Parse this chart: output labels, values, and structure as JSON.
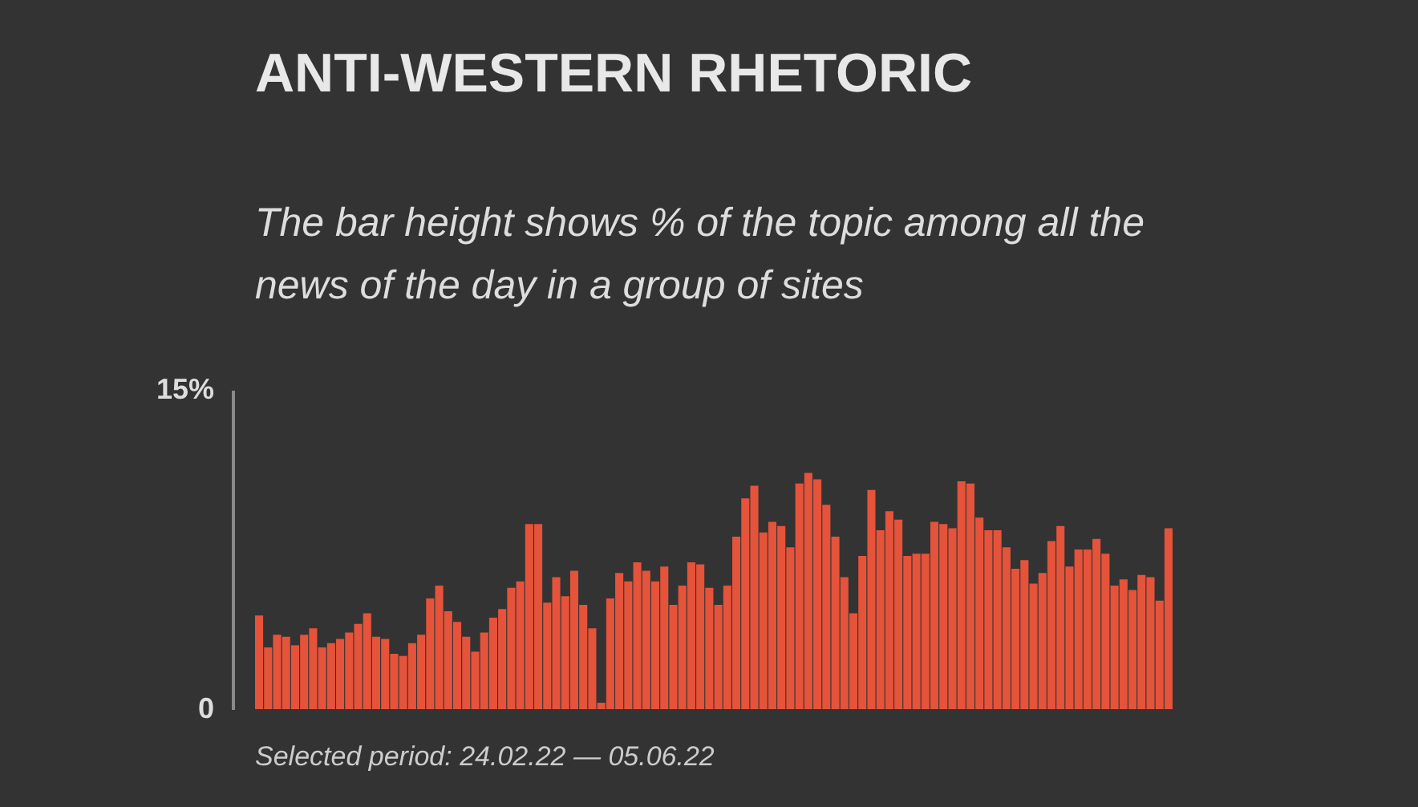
{
  "chart_data": {
    "type": "bar",
    "title": "ANTI-WESTERN RHETORIC",
    "subtitle": "The bar height shows % of the topic among all the news of the day in a group of sites",
    "annotations": [
      "Selected period: 24.02.22 — 05.06.22"
    ],
    "categories": [
      null,
      null,
      null,
      null,
      null,
      null,
      null,
      null,
      null,
      null,
      null,
      null,
      null,
      null,
      null,
      null,
      null,
      null,
      null,
      null,
      null,
      null,
      null,
      null,
      null,
      null,
      null,
      null,
      null,
      null,
      null,
      null,
      null,
      null,
      null,
      null,
      null,
      null,
      null,
      null,
      null,
      null,
      null,
      null,
      null,
      null,
      null,
      null,
      null,
      null,
      null,
      null,
      null,
      null,
      null,
      null,
      null,
      null,
      null,
      null,
      null,
      null,
      null,
      null,
      null,
      null,
      null,
      null,
      null,
      null,
      null,
      null,
      null,
      null,
      null,
      null,
      null,
      null,
      null,
      null,
      null,
      null,
      null,
      null,
      null,
      null,
      null,
      null,
      null,
      null,
      null,
      null,
      null,
      null,
      null,
      null,
      null,
      null,
      null,
      null,
      null,
      null
    ],
    "values": [
      4.4,
      2.9,
      3.5,
      3.4,
      3.0,
      3.5,
      3.8,
      2.9,
      3.1,
      3.3,
      3.6,
      4.0,
      4.5,
      3.4,
      3.3,
      2.6,
      2.5,
      3.1,
      3.5,
      5.2,
      5.8,
      4.6,
      4.1,
      3.4,
      2.7,
      3.6,
      4.3,
      4.7,
      5.7,
      6.0,
      8.7,
      8.7,
      5.0,
      6.2,
      5.3,
      6.5,
      4.9,
      3.8,
      0.3,
      5.2,
      6.4,
      6.0,
      6.9,
      6.5,
      6.0,
      6.7,
      4.9,
      5.8,
      6.9,
      6.8,
      5.7,
      4.9,
      5.8,
      8.1,
      9.9,
      10.5,
      8.3,
      8.8,
      8.6,
      7.6,
      10.6,
      11.1,
      10.8,
      9.6,
      8.1,
      6.2,
      4.5,
      7.2,
      10.3,
      8.4,
      9.3,
      8.9,
      7.2,
      7.3,
      7.3,
      8.8,
      8.7,
      8.5,
      10.7,
      10.6,
      9.0,
      8.4,
      8.4,
      7.6,
      6.6,
      7.0,
      5.9,
      6.4,
      7.9,
      8.6,
      6.7,
      7.5,
      7.5,
      8.0,
      7.3,
      5.8,
      6.1,
      5.6,
      6.3,
      6.2,
      5.1,
      8.5
    ],
    "color": "#e4533a",
    "ylim": [
      0,
      15
    ],
    "yticks": [
      0,
      {
        "value": 15,
        "label": "15%"
      }
    ],
    "tick_labels": "y"
  }
}
